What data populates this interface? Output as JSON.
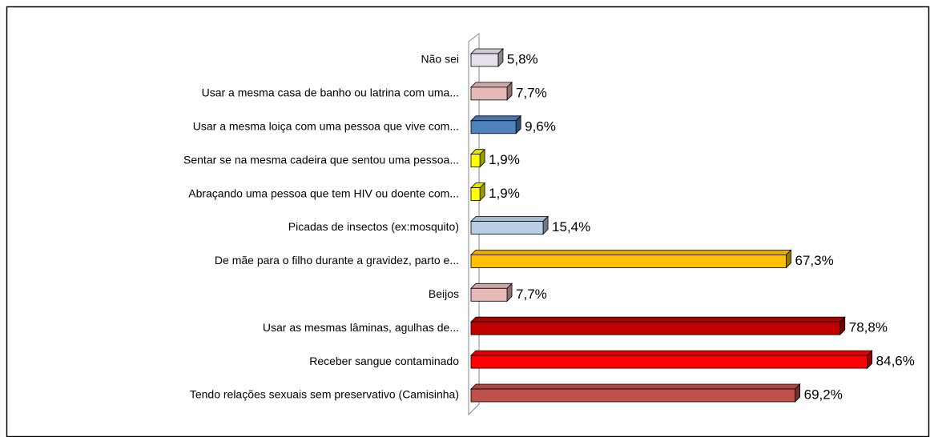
{
  "chart_data": {
    "type": "bar",
    "categories": [
      "Não sei",
      "Usar a mesma casa de banho ou latrina com uma...",
      "Usar a mesma loiça com uma pessoa que vive com...",
      "Sentar se na mesma cadeira que sentou uma pessoa...",
      "Abraçando uma pessoa que tem HIV ou doente com...",
      "Picadas de insectos (ex:mosquito)",
      "De mãe para o filho durante a gravidez, parto e...",
      "Beijos",
      "Usar as mesmas lâminas, agulhas de...",
      "Receber sangue contaminado",
      "Tendo relações sexuais sem preservativo (Camisinha)"
    ],
    "values": [
      5.8,
      7.7,
      9.6,
      1.9,
      1.9,
      15.4,
      67.3,
      7.7,
      78.8,
      84.6,
      69.2
    ],
    "value_labels": [
      "5,8%",
      "7,7%",
      "9,6%",
      "1,9%",
      "1,9%",
      "15,4%",
      "67,3%",
      "7,7%",
      "78,8%",
      "84,6%",
      "69,2%"
    ],
    "colors": [
      "#e6e0ec",
      "#e6b9b8",
      "#4f81bd",
      "#ffff00",
      "#ffff00",
      "#b9cde5",
      "#ffc000",
      "#e6b9b8",
      "#c00000",
      "#ff0000",
      "#c0504d"
    ],
    "xlim": [
      0,
      85
    ]
  }
}
